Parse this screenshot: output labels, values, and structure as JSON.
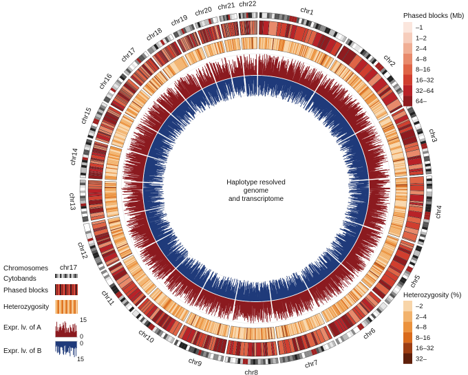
{
  "chart_data": {
    "type": "circos",
    "center_label": [
      "Haplotype resolved",
      "genome",
      "and transcriptome"
    ],
    "chromosomes": [
      {
        "name": "chr1",
        "length_mb": 249
      },
      {
        "name": "chr2",
        "length_mb": 243
      },
      {
        "name": "chr3",
        "length_mb": 198
      },
      {
        "name": "chr4",
        "length_mb": 191
      },
      {
        "name": "chr5",
        "length_mb": 181
      },
      {
        "name": "chr6",
        "length_mb": 171
      },
      {
        "name": "chr7",
        "length_mb": 159
      },
      {
        "name": "chr8",
        "length_mb": 146
      },
      {
        "name": "chr9",
        "length_mb": 141
      },
      {
        "name": "chr10",
        "length_mb": 136
      },
      {
        "name": "chr11",
        "length_mb": 135
      },
      {
        "name": "chr12",
        "length_mb": 134
      },
      {
        "name": "chr13",
        "length_mb": 115
      },
      {
        "name": "chr14",
        "length_mb": 107
      },
      {
        "name": "chr15",
        "length_mb": 103
      },
      {
        "name": "chr16",
        "length_mb": 90
      },
      {
        "name": "chr17",
        "length_mb": 81
      },
      {
        "name": "chr18",
        "length_mb": 78
      },
      {
        "name": "chr19",
        "length_mb": 59
      },
      {
        "name": "chr20",
        "length_mb": 63
      },
      {
        "name": "chr21",
        "length_mb": 48
      },
      {
        "name": "chr22",
        "length_mb": 51
      }
    ],
    "tracks": [
      "Chromosomes",
      "Cytobands",
      "Phased blocks",
      "Heterozygosity",
      "Expr. lv. of A",
      "Expr. lv. of B"
    ],
    "expression_axis": {
      "a_max": "15",
      "a_min": "0",
      "b_min": "0",
      "b_max": "15"
    },
    "colors": {
      "expression_a": "#8b1a1f",
      "expression_b": "#1f3a7a"
    },
    "legend_phased": {
      "title": "Phased blocks (Mb)",
      "items": [
        {
          "label": "–1",
          "color": "#fbe6dd"
        },
        {
          "label": "1–2",
          "color": "#f6cdbc"
        },
        {
          "label": "2–4",
          "color": "#f0ae94"
        },
        {
          "label": "4–8",
          "color": "#e88a6b"
        },
        {
          "label": "8–16",
          "color": "#df6446"
        },
        {
          "label": "16–32",
          "color": "#d03e2f"
        },
        {
          "label": "32–64",
          "color": "#b82228"
        },
        {
          "label": "64–",
          "color": "#8e1b1f"
        }
      ]
    },
    "legend_het": {
      "title": "Heterozygosity (%)",
      "items": [
        {
          "label": "–2",
          "color": "#f8d5a9"
        },
        {
          "label": "2–4",
          "color": "#f2b26c"
        },
        {
          "label": "4–8",
          "color": "#eb913c"
        },
        {
          "label": "8–16",
          "color": "#d96a1b"
        },
        {
          "label": "16–32",
          "color": "#9c3d12"
        },
        {
          "label": "32–",
          "color": "#5e1f0b"
        }
      ]
    },
    "track_key_example": "chr17"
  }
}
